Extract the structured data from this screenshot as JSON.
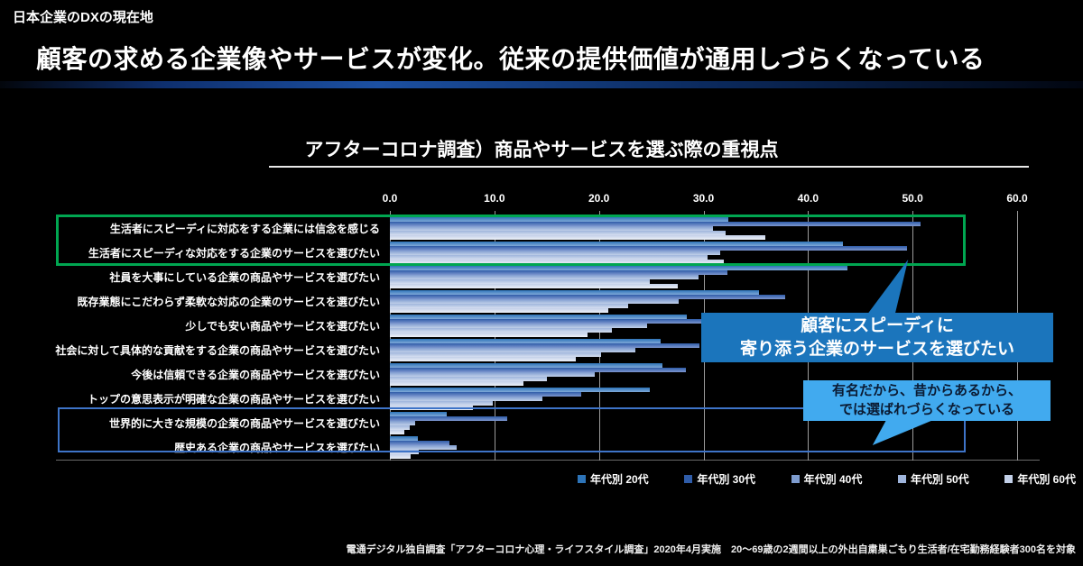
{
  "eyebrow": "日本企業のDXの現在地",
  "title": "顧客の求める企業像やサービスが変化。従来の提供価値が通用しづらくなっている",
  "chart_title": "アフターコロナ調査）商品やサービスを選ぶ際の重視点",
  "footer": "電通デジタル独自調査「アフターコロナ心理・ライフスタイル調査」2020年4月実施　20～69歳の2週間以上の外出自粛巣ごもり生活者/在宅勤務経験者300名を対象",
  "callouts": {
    "speedy": {
      "line1": "顧客にスピーディに",
      "line2": "寄り添う企業のサービスを選びたい"
    },
    "famous": {
      "line1": "有名だから、昔からあるから、",
      "line2": "では選ばれづらくなっている"
    }
  },
  "colors": {
    "bg": "#000000",
    "gridline": "#9b9b9b",
    "green_box": "#00A651",
    "blue_box": "#3E74C8",
    "callout1_bg": "#1B75BC",
    "callout2_bg": "#41AAEF",
    "callout2_text": "#0B1B33"
  },
  "chart_data": {
    "type": "bar",
    "orientation": "horizontal",
    "title": "アフターコロナ調査）商品やサービスを選ぶ際の重視点",
    "xlim": [
      0,
      60
    ],
    "xticks": [
      "0.0",
      "10.0",
      "20.0",
      "30.0",
      "40.0",
      "50.0",
      "60.0"
    ],
    "grid": true,
    "legend_position": "bottom",
    "categories": [
      "生活者にスピーディに対応をする企業には信念を感じる",
      "生活者にスピーディな対応をする企業のサービスを選びたい",
      "社員を大事にしている企業の商品やサービスを選びたい",
      "既存業態にこだわらず柔軟な対応の企業のサービスを選びたい",
      "少しでも安い商品やサービスを選びたい",
      "社会に対して具体的な貢献をする企業の商品やサービスを選びたい",
      "今後は信頼できる企業の商品やサービスを選びたい",
      "トップの意思表示が明確な企業の商品やサービスを選びたい",
      "世界的に大きな規模の企業の商品やサービスを選びたい",
      "歴史ある企業の商品やサービスを選びたい"
    ],
    "series": [
      {
        "name": "年代別 20代",
        "color": "#2D74B8",
        "color_light": "#7FA8D8",
        "values": [
          32.4,
          43.3,
          43.8,
          35.3,
          28.4,
          25.9,
          26.1,
          24.9,
          5.4,
          2.7
        ]
      },
      {
        "name": "年代別 30代",
        "color": "#2F5CA8",
        "color_light": "#7E97CF",
        "values": [
          50.8,
          49.5,
          32.3,
          37.8,
          35.1,
          29.6,
          28.3,
          18.3,
          11.2,
          5.7
        ]
      },
      {
        "name": "年代別 40代",
        "color": "#7E9CCF",
        "color_light": "#C0CFE8",
        "values": [
          30.9,
          31.6,
          29.5,
          27.6,
          24.6,
          23.5,
          19.6,
          14.6,
          2.4,
          6.4
        ]
      },
      {
        "name": "年代別 50代",
        "color": "#9FB5DC",
        "color_light": "#D5DEF0",
        "values": [
          32.1,
          30.4,
          24.9,
          22.8,
          21.2,
          20.2,
          15.0,
          9.8,
          1.9,
          2.8
        ]
      },
      {
        "name": "年代別 60代",
        "color": "#C3D0E8",
        "color_light": "#EDF1F9",
        "values": [
          35.9,
          31.9,
          27.5,
          20.9,
          18.9,
          17.8,
          12.8,
          7.9,
          1.4,
          2.0
        ]
      }
    ],
    "annotations": [
      {
        "target_rows": [
          0,
          1
        ],
        "shape": "green-rectangle"
      },
      {
        "target_rows": [
          8,
          9
        ],
        "shape": "blue-rectangle"
      },
      {
        "text": "顧客にスピーディに 寄り添う企業のサービスを選びたい",
        "points_to_rows": [
          0,
          1
        ]
      },
      {
        "text": "有名だから、昔からあるから、 では選ばれづらくなっている",
        "points_to_rows": [
          8,
          9
        ]
      }
    ]
  }
}
